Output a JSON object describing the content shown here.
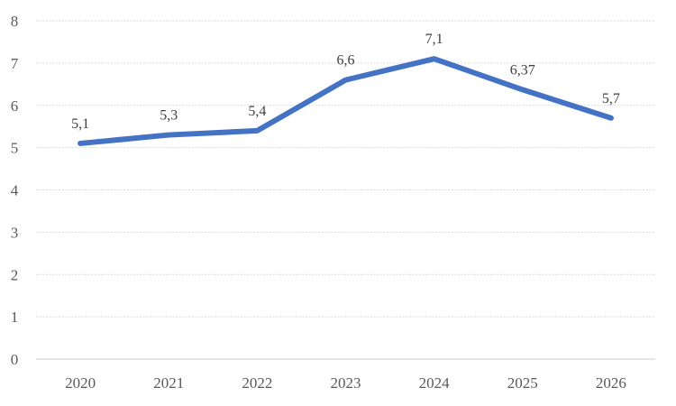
{
  "chart_data": {
    "type": "line",
    "categories": [
      "2020",
      "2021",
      "2022",
      "2023",
      "2024",
      "2025",
      "2026"
    ],
    "values": [
      5.1,
      5.3,
      5.4,
      6.6,
      7.1,
      6.37,
      5.7
    ],
    "data_labels": [
      "5,1",
      "5,3",
      "5,4",
      "6,6",
      "7,1",
      "6,37",
      "5,7"
    ],
    "ytick_labels": [
      "0",
      "1",
      "2",
      "3",
      "4",
      "5",
      "6",
      "7",
      "8"
    ],
    "ylim": [
      0,
      8
    ],
    "ytick_step": 1,
    "grid": "horizontal",
    "legend": "none",
    "decimal_separator": ",",
    "colors": {
      "line": "#4472C4",
      "data_label": "#404040",
      "axis_label": "#595959",
      "gridline": "#D9D9D9",
      "axis_line": "#C9C9C9",
      "background": "#FFFFFF"
    }
  }
}
